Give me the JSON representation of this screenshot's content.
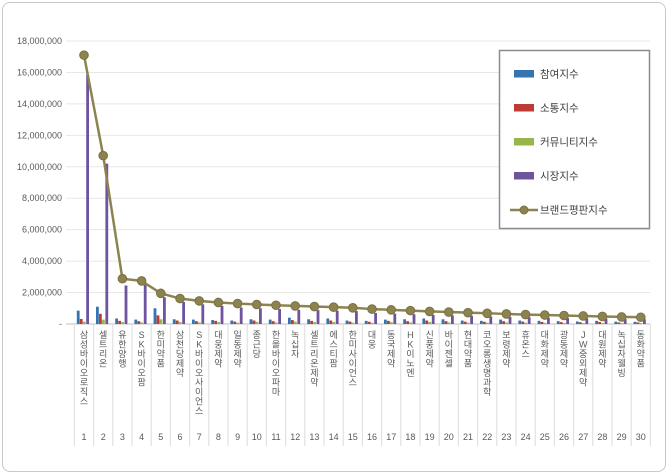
{
  "frame": {
    "background": "#ffffff",
    "border_color": "#c9c9c9"
  },
  "chart_data": {
    "type": "bar",
    "subtype": "grouped-bars-with-line",
    "title": "",
    "categories": [
      "삼성바이오로직스",
      "셀트리온",
      "유한양행",
      "SK바이오팜",
      "한미약품",
      "삼천당제약",
      "SK바이오사이언스",
      "대웅제약",
      "일동제약",
      "종근당",
      "한올바이오파마",
      "녹십자",
      "셀트리온제약",
      "에스티팜",
      "한미사이언스",
      "대웅",
      "동국제약",
      "HK이노엔",
      "신풍제약",
      "바이젠셀",
      "현대약품",
      "코오롱생명과학",
      "보령제약",
      "휴온스",
      "대화제약",
      "광동제약",
      "JW중외제약",
      "대원제약",
      "녹십자웰빙",
      "동화약품"
    ],
    "ranks": [
      "1",
      "2",
      "3",
      "4",
      "5",
      "6",
      "7",
      "8",
      "9",
      "10",
      "11",
      "12",
      "13",
      "14",
      "15",
      "16",
      "17",
      "18",
      "19",
      "20",
      "21",
      "22",
      "23",
      "24",
      "25",
      "26",
      "27",
      "28",
      "29",
      "30"
    ],
    "series": [
      {
        "name": "참여지수",
        "type": "bar",
        "color": "#3573B1",
        "values": [
          850000,
          1100000,
          350000,
          280000,
          1000000,
          300000,
          280000,
          250000,
          220000,
          300000,
          280000,
          400000,
          300000,
          350000,
          220000,
          200000,
          280000,
          300000,
          350000,
          300000,
          220000,
          200000,
          280000,
          220000,
          200000,
          180000,
          160000,
          200000,
          150000,
          140000
        ]
      },
      {
        "name": "소통지수",
        "type": "bar",
        "color": "#BE3A34",
        "values": [
          320000,
          650000,
          200000,
          180000,
          550000,
          220000,
          180000,
          200000,
          150000,
          220000,
          180000,
          250000,
          200000,
          220000,
          150000,
          140000,
          200000,
          180000,
          220000,
          180000,
          150000,
          140000,
          180000,
          150000,
          130000,
          120000,
          110000,
          130000,
          100000,
          100000
        ]
      },
      {
        "name": "커뮤니티지수",
        "type": "bar",
        "color": "#97B54A",
        "values": [
          150000,
          280000,
          120000,
          100000,
          300000,
          120000,
          100000,
          120000,
          80000,
          140000,
          100000,
          150000,
          120000,
          130000,
          80000,
          80000,
          120000,
          100000,
          130000,
          100000,
          80000,
          80000,
          100000,
          80000,
          70000,
          70000,
          60000,
          70000,
          60000,
          60000
        ]
      },
      {
        "name": "시장지수",
        "type": "bar",
        "color": "#6E549F",
        "values": [
          15850000,
          10200000,
          2450000,
          2500000,
          1700000,
          1400000,
          1250000,
          1150000,
          1050000,
          1000000,
          950000,
          900000,
          880000,
          850000,
          820000,
          700000,
          660000,
          620000,
          580000,
          550000,
          520000,
          480000,
          450000,
          420000,
          400000,
          380000,
          360000,
          340000,
          320000,
          300000
        ]
      },
      {
        "name": "브랜드평판지수",
        "type": "line",
        "color": "#8C8350",
        "marker_stroke": "#7A713F",
        "values": [
          17100000,
          10710000,
          2880000,
          2740000,
          1950000,
          1620000,
          1470000,
          1370000,
          1300000,
          1240000,
          1190000,
          1150000,
          1110000,
          1070000,
          1030000,
          950000,
          900000,
          850000,
          800000,
          760000,
          720000,
          680000,
          640000,
          600000,
          570000,
          540000,
          510000,
          480000,
          450000,
          430000
        ]
      }
    ],
    "y_axis": {
      "min": 0,
      "max": 18000000,
      "step": 2000000,
      "zero_label": "-",
      "tick_labels": [
        "-",
        "2,000,000",
        "4,000,000",
        "6,000,000",
        "8,000,000",
        "10,000,000",
        "12,000,000",
        "14,000,000",
        "16,000,000",
        "18,000,000"
      ]
    },
    "x_axis": {
      "label_orientation": "vertical",
      "rank_row": true
    },
    "legend": {
      "position": "inside-top-right",
      "border": true,
      "entries": [
        "참여지수",
        "소통지수",
        "커뮤니티지수",
        "시장지수",
        "브랜드평판지수"
      ]
    },
    "grid": "horizontal",
    "colors": {
      "gridline": "#E7E7E7",
      "axis": "#BFBFBF",
      "tick_separator": "#DCDCDC",
      "text": "#595959",
      "legend_border": "#8C8C8C"
    }
  }
}
